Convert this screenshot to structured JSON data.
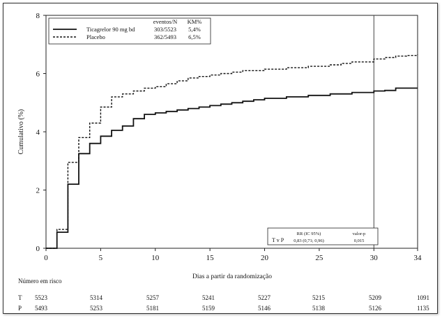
{
  "chart_data": {
    "type": "line",
    "xlabel": "Dias a partir da randomização",
    "ylabel": "Cumulativo (%)",
    "xlim": [
      0,
      34
    ],
    "ylim": [
      0,
      8
    ],
    "x_ticks": [
      0,
      5,
      10,
      15,
      20,
      25,
      30,
      34
    ],
    "y_ticks": [
      0,
      2,
      4,
      6,
      8
    ],
    "grid": false,
    "reference_line_x": 30,
    "legend": {
      "placement": "top-left",
      "header_events": "eventos/N",
      "header_km": "KM%",
      "entries": [
        {
          "label": "Ticagrelor 90 mg bd",
          "events": "303/5523",
          "km": "5,4%",
          "style": "solid",
          "color": "#111111"
        },
        {
          "label": "Placebo",
          "events": "362/5493",
          "km": "6,5%",
          "style": "dashed",
          "color": "#111111"
        }
      ]
    },
    "series": [
      {
        "name": "Ticagrelor 90 mg bd",
        "style": "solid",
        "x": [
          0,
          1,
          2,
          3,
          4,
          5,
          6,
          7,
          8,
          9,
          10,
          11,
          12,
          13,
          14,
          15,
          16,
          17,
          18,
          19,
          20,
          22,
          24,
          26,
          28,
          30,
          31,
          32,
          34
        ],
        "y": [
          0,
          0.55,
          2.2,
          3.25,
          3.6,
          3.85,
          4.05,
          4.2,
          4.45,
          4.6,
          4.65,
          4.7,
          4.75,
          4.8,
          4.85,
          4.9,
          4.95,
          5.0,
          5.05,
          5.1,
          5.15,
          5.2,
          5.25,
          5.3,
          5.35,
          5.4,
          5.42,
          5.5,
          5.5
        ]
      },
      {
        "name": "Placebo",
        "style": "dashed",
        "x": [
          0,
          1,
          2,
          3,
          4,
          5,
          6,
          7,
          8,
          9,
          10,
          11,
          12,
          13,
          14,
          15,
          16,
          17,
          18,
          20,
          22,
          24,
          26,
          27,
          28,
          30,
          31,
          32,
          33,
          34
        ],
        "y": [
          0,
          0.65,
          2.95,
          3.8,
          4.3,
          4.85,
          5.2,
          5.3,
          5.4,
          5.5,
          5.55,
          5.65,
          5.75,
          5.85,
          5.9,
          5.95,
          6.0,
          6.05,
          6.1,
          6.15,
          6.2,
          6.25,
          6.3,
          6.35,
          6.4,
          6.5,
          6.55,
          6.6,
          6.62,
          6.65
        ]
      }
    ],
    "stats_box": {
      "placement": "bottom-right",
      "header_rr": "RR (IC 95%)",
      "header_p": "valor-p",
      "row_label": "T v P",
      "rr": "0,83 (0,71; 0,96)",
      "p": "0,015"
    }
  },
  "risk_table": {
    "title": "Número em risco",
    "rows": [
      {
        "label": "T",
        "values": [
          "5523",
          "5314",
          "5257",
          "5241",
          "5227",
          "5215",
          "5209",
          "1091"
        ]
      },
      {
        "label": "P",
        "values": [
          "5493",
          "5253",
          "5181",
          "5159",
          "5146",
          "5138",
          "5126",
          "1135"
        ]
      }
    ]
  }
}
